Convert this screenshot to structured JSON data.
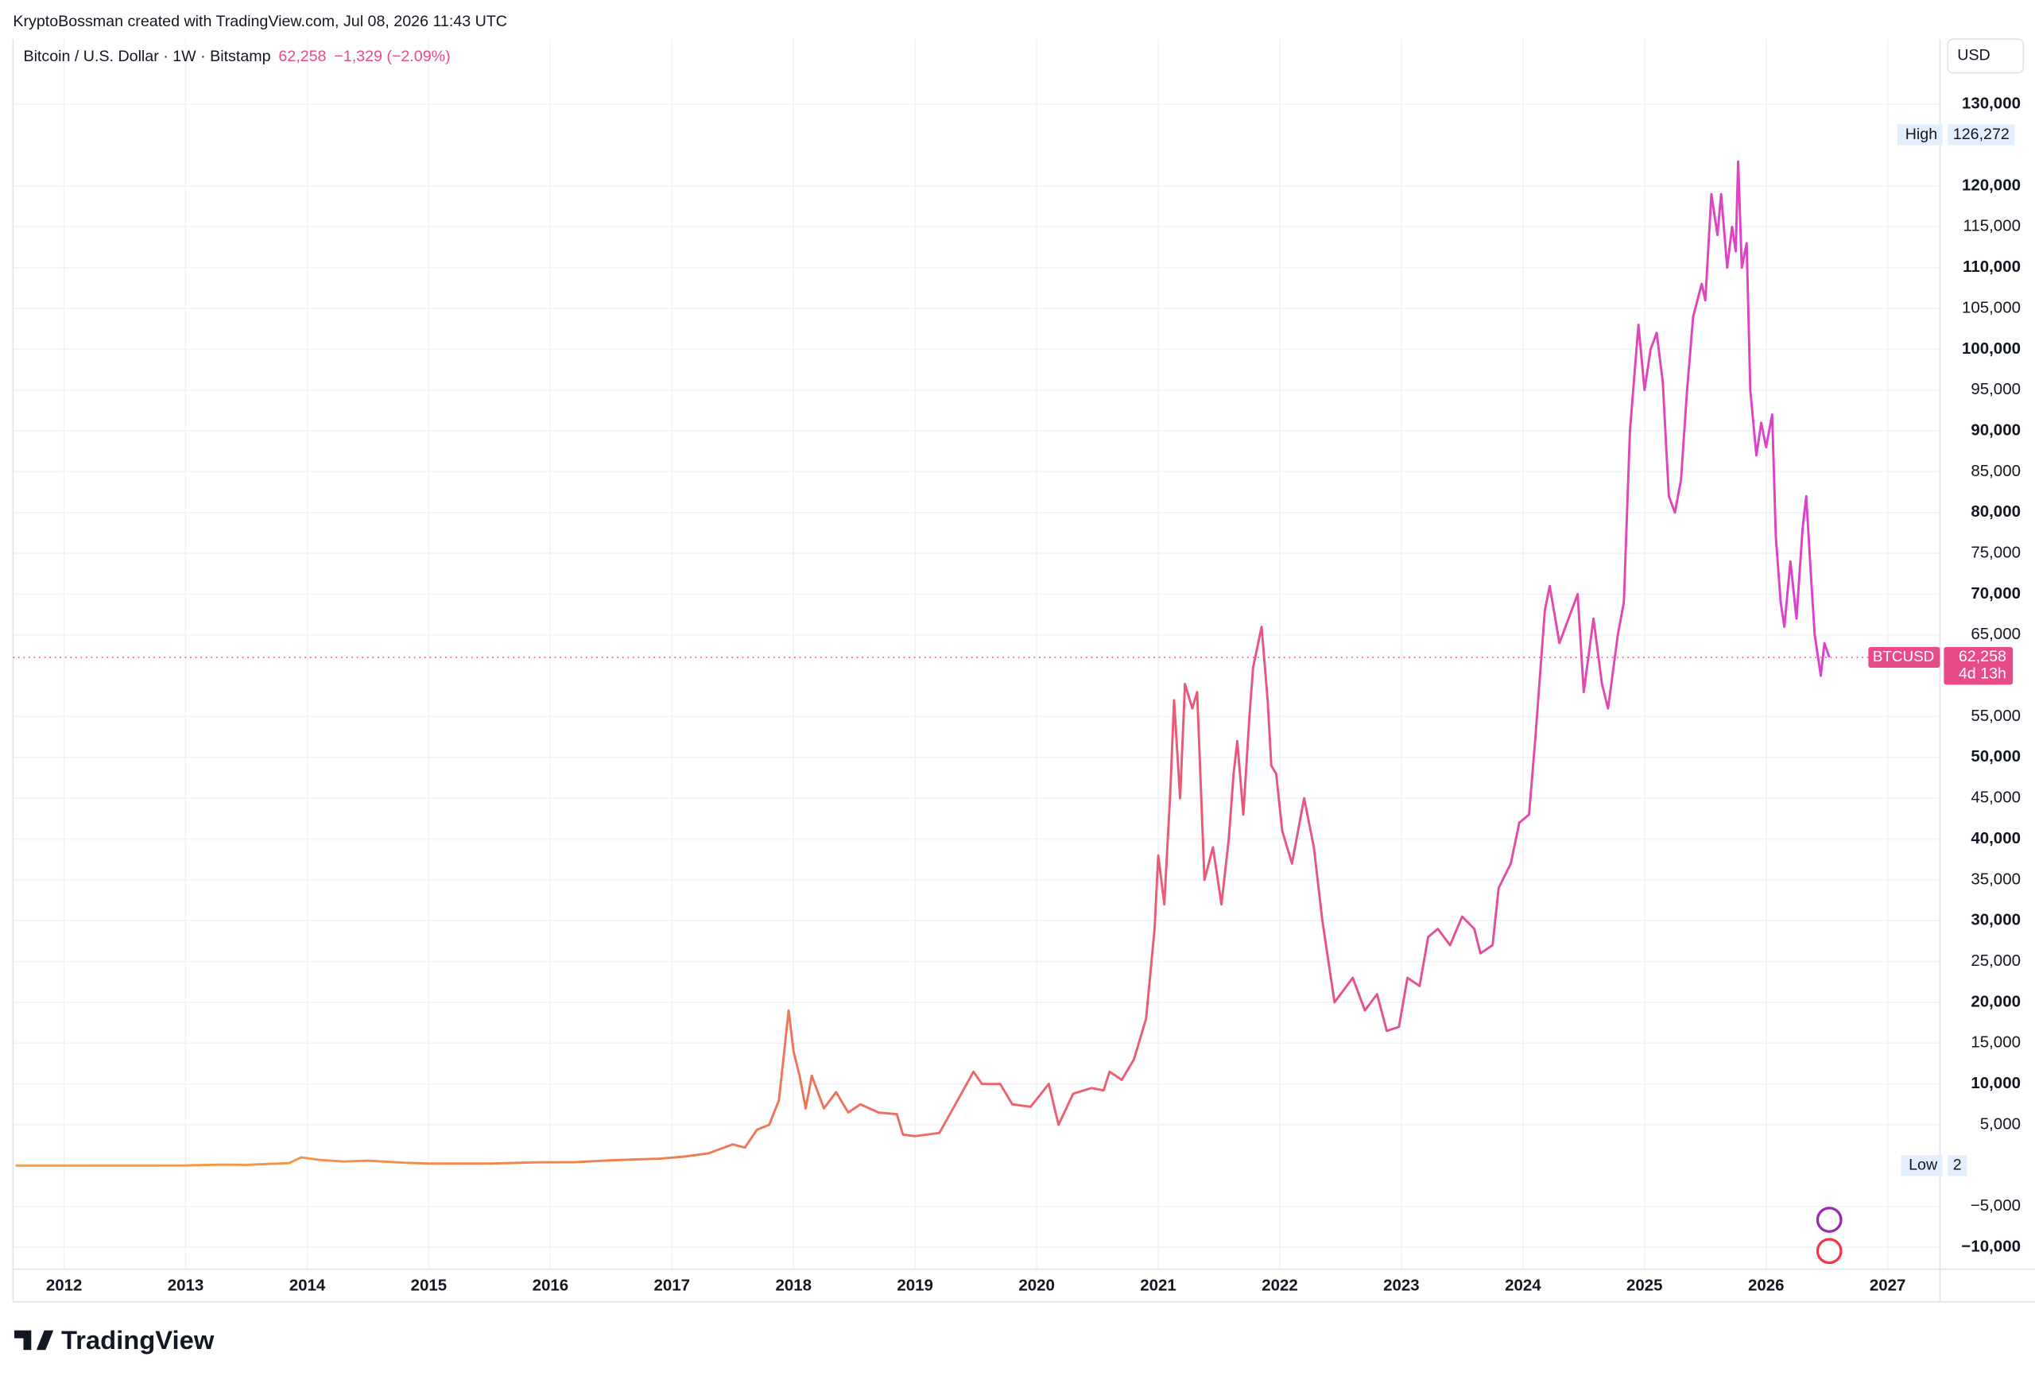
{
  "header": {
    "attribution": "KryptoBossman created with TradingView.com, Jul 08, 2026 11:43 UTC",
    "symbol": "Bitcoin / U.S. Dollar · 1W · Bitstamp",
    "price": "62,258",
    "change": "−1,329 (−2.09%)",
    "currency": "USD"
  },
  "chart_data": {
    "type": "line",
    "x": [
      2011.6,
      2012.0,
      2012.5,
      2013.0,
      2013.3,
      2013.5,
      2013.85,
      2013.95,
      2014.1,
      2014.3,
      2014.5,
      2014.8,
      2015.0,
      2015.5,
      2015.9,
      2016.2,
      2016.5,
      2016.9,
      2017.1,
      2017.3,
      2017.5,
      2017.6,
      2017.7,
      2017.8,
      2017.88,
      2017.96,
      2018.0,
      2018.05,
      2018.1,
      2018.15,
      2018.25,
      2018.35,
      2018.45,
      2018.55,
      2018.7,
      2018.85,
      2018.9,
      2019.0,
      2019.2,
      2019.35,
      2019.48,
      2019.55,
      2019.7,
      2019.8,
      2019.95,
      2020.1,
      2020.18,
      2020.3,
      2020.45,
      2020.55,
      2020.6,
      2020.7,
      2020.8,
      2020.9,
      2020.97,
      2021.0,
      2021.05,
      2021.1,
      2021.13,
      2021.18,
      2021.22,
      2021.28,
      2021.32,
      2021.38,
      2021.45,
      2021.52,
      2021.58,
      2021.62,
      2021.65,
      2021.7,
      2021.75,
      2021.78,
      2021.85,
      2021.9,
      2021.93,
      2021.97,
      2022.02,
      2022.1,
      2022.2,
      2022.28,
      2022.35,
      2022.45,
      2022.5,
      2022.6,
      2022.7,
      2022.8,
      2022.88,
      2022.98,
      2023.05,
      2023.15,
      2023.22,
      2023.3,
      2023.4,
      2023.5,
      2023.6,
      2023.65,
      2023.75,
      2023.8,
      2023.9,
      2023.97,
      2024.05,
      2024.1,
      2024.18,
      2024.22,
      2024.3,
      2024.4,
      2024.45,
      2024.5,
      2024.58,
      2024.65,
      2024.7,
      2024.78,
      2024.83,
      2024.88,
      2024.95,
      2025.0,
      2025.05,
      2025.1,
      2025.15,
      2025.2,
      2025.25,
      2025.3,
      2025.35,
      2025.4,
      2025.47,
      2025.5,
      2025.55,
      2025.6,
      2025.63,
      2025.68,
      2025.72,
      2025.75,
      2025.77,
      2025.8,
      2025.84,
      2025.87,
      2025.92,
      2025.96,
      2026.0,
      2026.05,
      2026.08,
      2026.12,
      2026.15,
      2026.2,
      2026.25,
      2026.3,
      2026.33,
      2026.37,
      2026.4,
      2026.45,
      2026.48,
      2026.52
    ],
    "series": [
      {
        "name": "BTCUSD",
        "colors": [
          "#f7a440",
          "#f08050",
          "#e9577a",
          "#dd3fd0"
        ],
        "values": [
          5,
          6,
          7,
          14,
          120,
          90,
          300,
          1000,
          700,
          500,
          600,
          350,
          250,
          250,
          400,
          420,
          650,
          850,
          1100,
          1500,
          2600,
          2200,
          4400,
          5000,
          8000,
          19000,
          14000,
          11000,
          7000,
          11000,
          7000,
          9000,
          6500,
          7500,
          6500,
          6300,
          3800,
          3600,
          4000,
          8000,
          11500,
          10000,
          10000,
          7500,
          7200,
          10000,
          5000,
          8800,
          9500,
          9200,
          11500,
          10500,
          13000,
          18000,
          29000,
          38000,
          32000,
          46000,
          57000,
          45000,
          59000,
          56000,
          58000,
          35000,
          39000,
          32000,
          40000,
          48000,
          52000,
          43000,
          55000,
          61000,
          66000,
          57000,
          49000,
          48000,
          41000,
          37000,
          45000,
          39000,
          30000,
          20000,
          21000,
          23000,
          19000,
          21000,
          16500,
          17000,
          23000,
          22000,
          28000,
          29000,
          27000,
          30500,
          29000,
          26000,
          27000,
          34000,
          37000,
          42000,
          43000,
          52000,
          68000,
          71000,
          64000,
          68000,
          70000,
          58000,
          67000,
          59000,
          56000,
          65000,
          69000,
          90000,
          103000,
          95000,
          100000,
          102000,
          96000,
          82000,
          80000,
          84000,
          95000,
          104000,
          108000,
          106000,
          119000,
          114000,
          119000,
          110000,
          115000,
          112000,
          123000,
          110000,
          113000,
          95000,
          87000,
          91000,
          88000,
          92000,
          77000,
          69000,
          66000,
          74000,
          67000,
          78000,
          82000,
          72000,
          65000,
          60000,
          64000,
          62258
        ]
      }
    ],
    "xlim": [
      2011.58,
      2027.43
    ],
    "xticks": [
      2012,
      2013,
      2014,
      2015,
      2016,
      2017,
      2018,
      2019,
      2020,
      2021,
      2022,
      2023,
      2024,
      2025,
      2026,
      2027
    ],
    "ylim": [
      -12700,
      138000
    ],
    "yticks": [
      {
        "value": 130000,
        "label": "130,000"
      },
      {
        "value": 120000,
        "label": "120,000"
      },
      {
        "value": 115000,
        "label": "115,000"
      },
      {
        "value": 110000,
        "label": "110,000"
      },
      {
        "value": 105000,
        "label": "105,000"
      },
      {
        "value": 100000,
        "label": "100,000"
      },
      {
        "value": 95000,
        "label": "95,000"
      },
      {
        "value": 90000,
        "label": "90,000"
      },
      {
        "value": 85000,
        "label": "85,000"
      },
      {
        "value": 80000,
        "label": "80,000"
      },
      {
        "value": 75000,
        "label": "75,000"
      },
      {
        "value": 70000,
        "label": "70,000"
      },
      {
        "value": 65000,
        "label": "65,000"
      },
      {
        "value": 55000,
        "label": "55,000"
      },
      {
        "value": 50000,
        "label": "50,000"
      },
      {
        "value": 45000,
        "label": "45,000"
      },
      {
        "value": 40000,
        "label": "40,000"
      },
      {
        "value": 35000,
        "label": "35,000"
      },
      {
        "value": 30000,
        "label": "30,000"
      },
      {
        "value": 25000,
        "label": "25,000"
      },
      {
        "value": 20000,
        "label": "20,000"
      },
      {
        "value": 15000,
        "label": "15,000"
      },
      {
        "value": 10000,
        "label": "10,000"
      },
      {
        "value": 5000,
        "label": "5,000"
      },
      {
        "value": -5000,
        "label": "−5,000"
      },
      {
        "value": -10000,
        "label": "−10,000"
      }
    ],
    "grid": true,
    "high": {
      "name": "High",
      "value": 126272,
      "label": "126,272"
    },
    "low": {
      "name": "Low",
      "value": 2,
      "label": "2"
    },
    "last": {
      "value": 62258,
      "label": "62,258",
      "countdown": "4d 13h"
    }
  },
  "footer": {
    "logo": "TradingView"
  }
}
